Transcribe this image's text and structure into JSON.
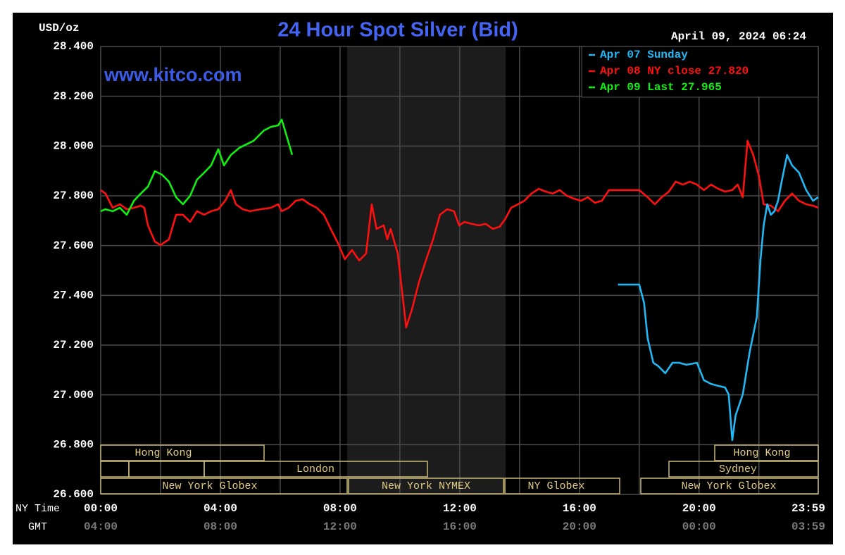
{
  "chart_data": {
    "type": "line",
    "title": "24 Hour Spot Silver (Bid)",
    "subtitle": "April 09, 2024 06:24",
    "watermark": "www.kitco.com",
    "ylabel": "USD/oz",
    "xlabel": "NY Time",
    "x2label": "GMT",
    "xlim": [
      0,
      23.983
    ],
    "ylim": [
      26.6,
      28.4
    ],
    "xticks": [
      {
        "value": 0,
        "label": "00:00"
      },
      {
        "value": 4,
        "label": "04:00"
      },
      {
        "value": 8,
        "label": "08:00"
      },
      {
        "value": 12,
        "label": "12:00"
      },
      {
        "value": 16,
        "label": "16:00"
      },
      {
        "value": 20,
        "label": "20:00"
      },
      {
        "value": 23.983,
        "label": "23:59"
      }
    ],
    "gmt_ticks": [
      "04:00",
      "08:00",
      "12:00",
      "16:00",
      "20:00",
      "00:00",
      "03:59"
    ],
    "xgrid": [
      2,
      6,
      10,
      14,
      18,
      22
    ],
    "yticks": [
      {
        "value": 26.6,
        "label": "26.600"
      },
      {
        "value": 26.8,
        "label": "26.800"
      },
      {
        "value": 27.0,
        "label": "27.000"
      },
      {
        "value": 27.2,
        "label": "27.200"
      },
      {
        "value": 27.4,
        "label": "27.400"
      },
      {
        "value": 27.6,
        "label": "27.600"
      },
      {
        "value": 27.8,
        "label": "27.800"
      },
      {
        "value": 28.0,
        "label": "28.000"
      },
      {
        "value": 28.2,
        "label": "28.200"
      },
      {
        "value": 28.4,
        "label": "28.400"
      }
    ],
    "grid": true,
    "legend": "top-right",
    "sessions": [
      "Hong Kong",
      "London",
      "New York Globex",
      "New York NYMEX",
      "NY Globex",
      "Hong Kong",
      "Sydney",
      "New York Globex"
    ],
    "series": [
      {
        "name": "Apr 07 Sunday",
        "color": "#22b8f4",
        "x": [
          17.29,
          18.0,
          18.16,
          18.28,
          18.47,
          18.64,
          18.87,
          19.11,
          19.34,
          19.58,
          19.93,
          20.16,
          20.4,
          20.64,
          20.87,
          20.99,
          21.11,
          21.22,
          21.46,
          21.69,
          21.93,
          22.05,
          22.16,
          22.28,
          22.4,
          22.52,
          22.64,
          22.75,
          22.94,
          23.11,
          23.34,
          23.58,
          23.81,
          23.98
        ],
        "values": [
          27.443,
          27.443,
          27.37,
          27.228,
          27.129,
          27.115,
          27.087,
          27.129,
          27.129,
          27.121,
          27.129,
          27.059,
          27.044,
          27.036,
          27.03,
          27.002,
          26.818,
          26.917,
          27.002,
          27.172,
          27.313,
          27.54,
          27.681,
          27.766,
          27.724,
          27.738,
          27.78,
          27.851,
          27.964,
          27.922,
          27.893,
          27.823,
          27.78,
          27.794
        ]
      },
      {
        "name": "Apr 08 NY close 27.820",
        "color": "#ff1010",
        "x": [
          0,
          0.16,
          0.4,
          0.64,
          0.87,
          1.11,
          1.34,
          1.46,
          1.58,
          1.81,
          2.0,
          2.28,
          2.52,
          2.75,
          2.99,
          3.22,
          3.46,
          3.69,
          3.93,
          4.16,
          4.35,
          4.52,
          4.75,
          4.99,
          5.34,
          5.69,
          5.93,
          6.05,
          6.28,
          6.52,
          6.75,
          6.99,
          7.22,
          7.46,
          7.69,
          7.93,
          8.16,
          8.4,
          8.64,
          8.87,
          9.06,
          9.22,
          9.46,
          9.58,
          9.69,
          9.93,
          10.09,
          10.21,
          10.4,
          10.64,
          10.87,
          11.11,
          11.34,
          11.58,
          11.81,
          11.98,
          12.16,
          12.4,
          12.64,
          12.87,
          13.11,
          13.34,
          13.53,
          13.72,
          13.95,
          14.16,
          14.4,
          14.64,
          14.87,
          15.11,
          15.34,
          15.58,
          15.81,
          16.05,
          16.28,
          16.52,
          16.75,
          16.99,
          18.0,
          18.28,
          18.52,
          18.75,
          18.99,
          19.22,
          19.46,
          19.69,
          19.93,
          20.16,
          20.4,
          20.64,
          20.87,
          21.11,
          21.29,
          21.46,
          21.62,
          21.81,
          22.0,
          22.16,
          22.4,
          22.64,
          22.87,
          23.11,
          23.34,
          23.58,
          23.81,
          23.98
        ],
        "values": [
          27.823,
          27.809,
          27.752,
          27.766,
          27.746,
          27.752,
          27.76,
          27.752,
          27.681,
          27.616,
          27.602,
          27.625,
          27.724,
          27.724,
          27.695,
          27.738,
          27.724,
          27.738,
          27.746,
          27.78,
          27.823,
          27.766,
          27.746,
          27.738,
          27.746,
          27.752,
          27.766,
          27.738,
          27.752,
          27.78,
          27.786,
          27.766,
          27.752,
          27.724,
          27.667,
          27.61,
          27.545,
          27.582,
          27.54,
          27.568,
          27.766,
          27.667,
          27.681,
          27.625,
          27.667,
          27.568,
          27.398,
          27.271,
          27.342,
          27.455,
          27.54,
          27.625,
          27.724,
          27.746,
          27.738,
          27.681,
          27.695,
          27.687,
          27.681,
          27.687,
          27.667,
          27.676,
          27.709,
          27.752,
          27.766,
          27.78,
          27.809,
          27.828,
          27.817,
          27.809,
          27.823,
          27.8,
          27.789,
          27.78,
          27.794,
          27.772,
          27.78,
          27.823,
          27.823,
          27.794,
          27.766,
          27.794,
          27.817,
          27.857,
          27.845,
          27.857,
          27.845,
          27.823,
          27.845,
          27.828,
          27.817,
          27.823,
          27.845,
          27.794,
          28.021,
          27.964,
          27.879,
          27.766,
          27.76,
          27.738,
          27.78,
          27.809,
          27.78,
          27.766,
          27.76,
          27.752
        ]
      },
      {
        "name": "Apr 09 Last 27.965",
        "color": "#10f010",
        "x": [
          0,
          0.16,
          0.4,
          0.64,
          0.87,
          1.11,
          1.34,
          1.58,
          1.81,
          2.05,
          2.28,
          2.52,
          2.75,
          2.99,
          3.22,
          3.46,
          3.69,
          3.93,
          4.12,
          4.35,
          4.64,
          4.87,
          5.11,
          5.46,
          5.69,
          5.93,
          6.05,
          6.16,
          6.4
        ],
        "values": [
          27.738,
          27.746,
          27.738,
          27.752,
          27.724,
          27.78,
          27.809,
          27.837,
          27.899,
          27.885,
          27.857,
          27.794,
          27.766,
          27.8,
          27.865,
          27.893,
          27.922,
          27.987,
          27.922,
          27.964,
          27.993,
          28.007,
          28.021,
          28.063,
          28.077,
          28.083,
          28.106,
          28.063,
          27.965
        ]
      }
    ]
  }
}
